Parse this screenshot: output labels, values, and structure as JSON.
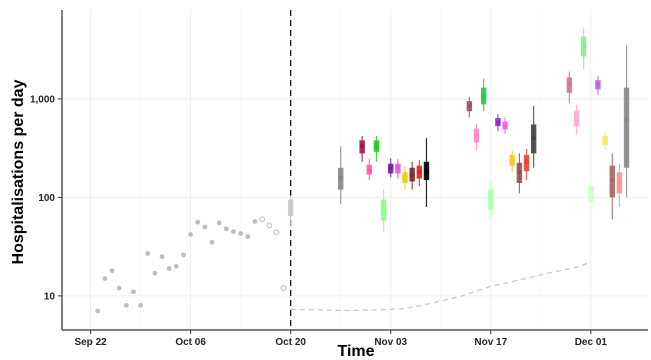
{
  "chart_data": {
    "type": "scatter",
    "title": "",
    "xlabel": "Time",
    "ylabel": "Hospitalisations per day",
    "x_axis": {
      "type": "date",
      "range": [
        "2020-09-18",
        "2020-12-09"
      ],
      "ticks": [
        "2020-09-22",
        "2020-10-06",
        "2020-10-20",
        "2020-11-03",
        "2020-11-17",
        "2020-12-01"
      ],
      "tick_labels": [
        "Sep 22",
        "Oct 06",
        "Oct 20",
        "Nov 03",
        "Nov 17",
        "Dec 01"
      ]
    },
    "y_axis": {
      "scale": "log10",
      "range": [
        4.5,
        8000
      ],
      "ticks": [
        10,
        100,
        1000
      ],
      "tick_labels": [
        "10",
        "100",
        "1,000"
      ]
    },
    "grid": true,
    "legend": "none",
    "forecast_date": "2020-10-20",
    "observed": [
      {
        "x": "2020-09-23",
        "y": 7
      },
      {
        "x": "2020-09-24",
        "y": 15
      },
      {
        "x": "2020-09-25",
        "y": 18
      },
      {
        "x": "2020-09-26",
        "y": 12
      },
      {
        "x": "2020-09-27",
        "y": 8
      },
      {
        "x": "2020-09-28",
        "y": 11
      },
      {
        "x": "2020-09-29",
        "y": 8
      },
      {
        "x": "2020-09-30",
        "y": 27
      },
      {
        "x": "2020-10-01",
        "y": 17
      },
      {
        "x": "2020-10-02",
        "y": 25
      },
      {
        "x": "2020-10-03",
        "y": 19
      },
      {
        "x": "2020-10-04",
        "y": 20
      },
      {
        "x": "2020-10-05",
        "y": 26
      },
      {
        "x": "2020-10-06",
        "y": 42
      },
      {
        "x": "2020-10-07",
        "y": 56
      },
      {
        "x": "2020-10-08",
        "y": 50
      },
      {
        "x": "2020-10-09",
        "y": 35
      },
      {
        "x": "2020-10-10",
        "y": 55
      },
      {
        "x": "2020-10-11",
        "y": 48
      },
      {
        "x": "2020-10-12",
        "y": 45
      },
      {
        "x": "2020-10-13",
        "y": 43
      },
      {
        "x": "2020-10-14",
        "y": 40
      },
      {
        "x": "2020-10-15",
        "y": 57
      }
    ],
    "observed_open": [
      {
        "x": "2020-10-16",
        "y": 60
      },
      {
        "x": "2020-10-17",
        "y": 52
      },
      {
        "x": "2020-10-18",
        "y": 44
      },
      {
        "x": "2020-10-19",
        "y": 12
      }
    ],
    "reference_line": [
      {
        "x": "2020-10-20",
        "y": 7.3
      },
      {
        "x": "2020-10-24",
        "y": 7.2
      },
      {
        "x": "2020-10-28",
        "y": 7.1
      },
      {
        "x": "2020-11-01",
        "y": 7.2
      },
      {
        "x": "2020-11-05",
        "y": 7.4
      },
      {
        "x": "2020-11-09",
        "y": 8.5
      },
      {
        "x": "2020-11-13",
        "y": 10
      },
      {
        "x": "2020-11-17",
        "y": 12.5
      },
      {
        "x": "2020-11-21",
        "y": 14.5
      },
      {
        "x": "2020-11-25",
        "y": 17
      },
      {
        "x": "2020-11-29",
        "y": 19.5
      },
      {
        "x": "2020-12-01",
        "y": 22
      }
    ],
    "forecasts": [
      {
        "x": "2020-10-20",
        "color": "#c8c8c8",
        "lo": 50,
        "q1": 65,
        "med": 80,
        "q3": 95,
        "hi": 105
      },
      {
        "x": "2020-10-27",
        "color": "#888888",
        "lo": 85,
        "q1": 120,
        "med": 160,
        "q3": 200,
        "hi": 330
      },
      {
        "x": "2020-10-30",
        "color": "#9b1c4a",
        "lo": 230,
        "q1": 280,
        "med": 330,
        "q3": 380,
        "hi": 420
      },
      {
        "x": "2020-10-31",
        "color": "#ff5fa8",
        "lo": 150,
        "q1": 170,
        "med": 190,
        "q3": 215,
        "hi": 245
      },
      {
        "x": "2020-11-01",
        "color": "#22cc22",
        "lo": 230,
        "q1": 290,
        "med": 330,
        "q3": 380,
        "hi": 420
      },
      {
        "x": "2020-11-02",
        "color": "#88ff88",
        "lo": 45,
        "q1": 58,
        "med": 75,
        "q3": 95,
        "hi": 120
      },
      {
        "x": "2020-11-03",
        "color": "#7b1fa2",
        "lo": 160,
        "q1": 175,
        "med": 200,
        "q3": 220,
        "hi": 250
      },
      {
        "x": "2020-11-04",
        "color": "#ea55ea",
        "lo": 155,
        "q1": 175,
        "med": 200,
        "q3": 220,
        "hi": 245
      },
      {
        "x": "2020-11-05",
        "color": "#f0d000",
        "lo": 120,
        "q1": 140,
        "med": 160,
        "q3": 180,
        "hi": 210
      },
      {
        "x": "2020-11-06",
        "color": "#7a2a2a",
        "lo": 120,
        "q1": 145,
        "med": 170,
        "q3": 200,
        "hi": 230
      },
      {
        "x": "2020-11-07",
        "color": "#ee2222",
        "lo": 130,
        "q1": 155,
        "med": 180,
        "q3": 210,
        "hi": 240
      },
      {
        "x": "2020-11-08",
        "color": "#000000",
        "lo": 80,
        "q1": 150,
        "med": 180,
        "q3": 230,
        "hi": 400
      },
      {
        "x": "2020-11-14",
        "color": "#a0506a",
        "lo": 650,
        "q1": 750,
        "med": 850,
        "q3": 950,
        "hi": 1050
      },
      {
        "x": "2020-11-15",
        "color": "#ff88cc",
        "lo": 300,
        "q1": 360,
        "med": 430,
        "q3": 500,
        "hi": 560
      },
      {
        "x": "2020-11-16",
        "color": "#22cc44",
        "lo": 750,
        "q1": 880,
        "med": 1050,
        "q3": 1300,
        "hi": 1600
      },
      {
        "x": "2020-11-17",
        "color": "#aaffaa",
        "lo": 60,
        "q1": 75,
        "med": 95,
        "q3": 120,
        "hi": 150
      },
      {
        "x": "2020-11-18",
        "color": "#9b2ec0",
        "lo": 470,
        "q1": 530,
        "med": 580,
        "q3": 640,
        "hi": 700
      },
      {
        "x": "2020-11-19",
        "color": "#ee66ee",
        "lo": 440,
        "q1": 490,
        "med": 540,
        "q3": 590,
        "hi": 650
      },
      {
        "x": "2020-11-20",
        "color": "#f0cc22",
        "lo": 180,
        "q1": 210,
        "med": 240,
        "q3": 270,
        "hi": 300
      },
      {
        "x": "2020-11-21",
        "color": "#9b5050",
        "lo": 110,
        "q1": 140,
        "med": 180,
        "q3": 225,
        "hi": 280
      },
      {
        "x": "2020-11-22",
        "color": "#ee4433",
        "lo": 150,
        "q1": 185,
        "med": 230,
        "q3": 270,
        "hi": 310
      },
      {
        "x": "2020-11-23",
        "color": "#444444",
        "lo": 200,
        "q1": 280,
        "med": 400,
        "q3": 550,
        "hi": 850
      },
      {
        "x": "2020-11-28",
        "color": "#cc7799",
        "lo": 900,
        "q1": 1150,
        "med": 1400,
        "q3": 1650,
        "hi": 1900
      },
      {
        "x": "2020-11-29",
        "color": "#ffaad4",
        "lo": 430,
        "q1": 530,
        "med": 640,
        "q3": 760,
        "hi": 870
      },
      {
        "x": "2020-11-30",
        "color": "#88ee88",
        "lo": 2000,
        "q1": 2700,
        "med": 3400,
        "q3": 4300,
        "hi": 5200
      },
      {
        "x": "2020-12-01",
        "color": "#ccffcc",
        "lo": 75,
        "q1": 90,
        "med": 110,
        "q3": 130,
        "hi": 150
      },
      {
        "x": "2020-12-02",
        "color": "#bb66dd",
        "lo": 1100,
        "q1": 1250,
        "med": 1400,
        "q3": 1550,
        "hi": 1700
      },
      {
        "x": "2020-12-03",
        "color": "#f5ee60",
        "lo": 300,
        "q1": 340,
        "med": 380,
        "q3": 420,
        "hi": 460
      },
      {
        "x": "2020-12-04",
        "color": "#aa6666",
        "lo": 60,
        "q1": 100,
        "med": 150,
        "q3": 210,
        "hi": 280
      },
      {
        "x": "2020-12-05",
        "color": "#ff9090",
        "lo": 80,
        "q1": 110,
        "med": 145,
        "q3": 180,
        "hi": 220
      },
      {
        "x": "2020-12-06",
        "color": "#888888",
        "lo": 100,
        "q1": 200,
        "med": 620,
        "q3": 1300,
        "hi": 3500
      }
    ]
  }
}
